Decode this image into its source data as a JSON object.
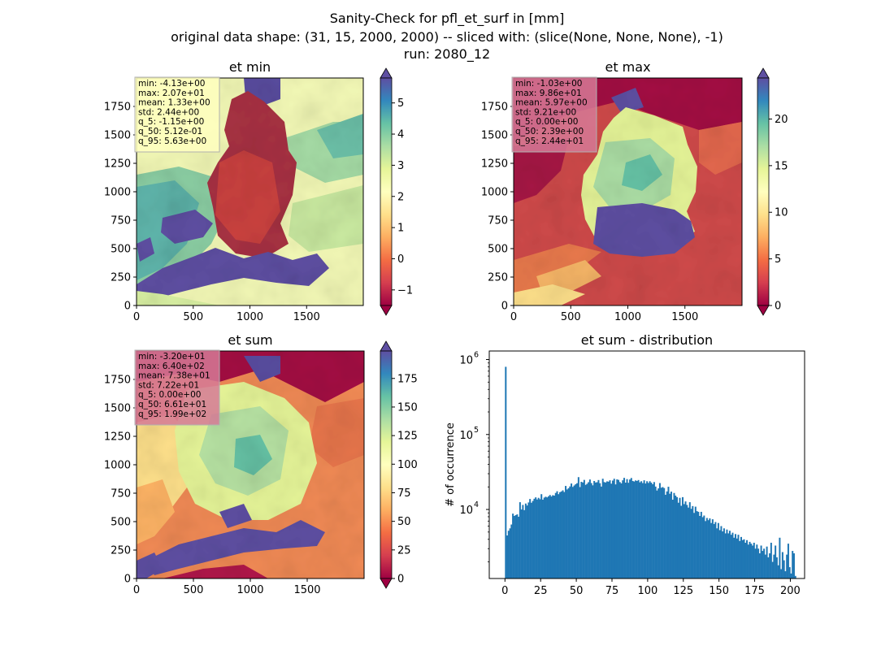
{
  "figure": {
    "suptitle_lines": [
      "Sanity-Check for pfl_et_surf in [mm]",
      "original data shape: (31, 15, 2000, 2000) -- sliced with: (slice(None, None, None), -1)",
      "run: 2080_12"
    ]
  },
  "chart_data": [
    {
      "type": "heatmap",
      "title": "et min",
      "xticks": [
        0,
        500,
        1000,
        1500
      ],
      "yticks": [
        0,
        250,
        500,
        750,
        1000,
        1250,
        1500,
        1750
      ],
      "xlim": [
        0,
        2000
      ],
      "ylim": [
        0,
        2000
      ],
      "colormap": "Spectral",
      "colorbar": {
        "vmin": -1.5,
        "vmax": 5.8,
        "ticks": [
          -1,
          0,
          1,
          2,
          3,
          4,
          5
        ],
        "extend": "both"
      },
      "stats": [
        "min: -4.13e+00",
        "max: 2.07e+01",
        "mean: 1.33e+00",
        "std: 2.44e+00",
        "q_5: -1.15e+00",
        "q_50: 5.12e-01",
        "q_95: 5.63e+00"
      ],
      "stats_box_color": "#ffffbf"
    },
    {
      "type": "heatmap",
      "title": "et max",
      "xticks": [
        0,
        500,
        1000,
        1500
      ],
      "yticks": [
        0,
        250,
        500,
        750,
        1000,
        1250,
        1500,
        1750
      ],
      "xlim": [
        0,
        2000
      ],
      "ylim": [
        0,
        2000
      ],
      "colormap": "Spectral",
      "colorbar": {
        "vmin": 0,
        "vmax": 24.4,
        "ticks": [
          0,
          5,
          10,
          15,
          20
        ],
        "extend": "both"
      },
      "stats": [
        "min: -1.03e+00",
        "max: 9.86e+01",
        "mean: 5.97e+00",
        "std: 9.21e+00",
        "q_5: 0.00e+00",
        "q_50: 2.39e+00",
        "q_95: 2.44e+01"
      ],
      "stats_box_color": "#d67a96"
    },
    {
      "type": "heatmap",
      "title": "et sum",
      "xticks": [
        0,
        500,
        1000,
        1500
      ],
      "yticks": [
        0,
        250,
        500,
        750,
        1000,
        1250,
        1500,
        1750
      ],
      "xlim": [
        0,
        2000
      ],
      "ylim": [
        0,
        2000
      ],
      "colormap": "Spectral",
      "colorbar": {
        "vmin": 0,
        "vmax": 199,
        "ticks": [
          0,
          25,
          50,
          75,
          100,
          125,
          150,
          175
        ],
        "extend": "both"
      },
      "stats": [
        "min: -3.20e+01",
        "max: 6.40e+02",
        "mean: 7.38e+01",
        "std: 7.22e+01",
        "q_5: 0.00e+00",
        "q_50: 6.61e+01",
        "q_95: 1.99e+02"
      ],
      "stats_box_color": "#d67a96"
    },
    {
      "type": "bar",
      "title": "et sum - distribution",
      "ylabel": "# of occurrence",
      "yscale": "log",
      "ylim": [
        1200,
        1300000
      ],
      "xlim": [
        -11,
        210
      ],
      "xticks": [
        0,
        25,
        50,
        75,
        100,
        125,
        150,
        175,
        200
      ],
      "ytick_labels": [
        {
          "value": 10000,
          "base": "10",
          "exp": "4"
        },
        {
          "value": 100000,
          "base": "10",
          "exp": "5"
        },
        {
          "value": 1000000,
          "base": "10",
          "exp": "6"
        }
      ],
      "bin_start": 0,
      "bin_width": 1,
      "color": "#1f77b4",
      "values": [
        800000,
        4500,
        5200,
        5600,
        6300,
        8800,
        8200,
        8400,
        8600,
        8000,
        12500,
        10000,
        11500,
        9800,
        12000,
        11300,
        12400,
        13800,
        12300,
        13000,
        13900,
        14500,
        13600,
        14300,
        13700,
        16000,
        13500,
        14400,
        14800,
        14500,
        15000,
        15600,
        14900,
        15500,
        15300,
        16600,
        17500,
        16000,
        17000,
        17400,
        18000,
        17100,
        20600,
        18500,
        19200,
        20300,
        22200,
        20000,
        20900,
        21700,
        22400,
        27000,
        19900,
        23400,
        22900,
        24800,
        21300,
        22000,
        23100,
        25100,
        22500,
        21000,
        24000,
        22900,
        23100,
        24700,
        22400,
        20200,
        25700,
        23200,
        22900,
        23700,
        23500,
        24500,
        22100,
        24300,
        25700,
        21600,
        25200,
        24800,
        23200,
        22300,
        24500,
        26400,
        22800,
        25400,
        22700,
        25100,
        26300,
        24000,
        23600,
        24400,
        24000,
        24700,
        23000,
        23800,
        22500,
        24500,
        22200,
        23800,
        22600,
        23800,
        22800,
        21700,
        23200,
        20200,
        17900,
        19100,
        22500,
        19500,
        19900,
        19300,
        15700,
        17400,
        20100,
        16200,
        17300,
        13500,
        16600,
        15300,
        14600,
        12300,
        14300,
        11200,
        14600,
        11800,
        12800,
        11500,
        10600,
        12500,
        10200,
        11100,
        9000,
        10900,
        9500,
        9300,
        8200,
        9300,
        7900,
        8300,
        7000,
        7700,
        7200,
        7600,
        6600,
        7400,
        6400,
        6800,
        5600,
        6600,
        5300,
        6000,
        5100,
        5600,
        4800,
        5400,
        4800,
        5200,
        4600,
        4900,
        4200,
        4700,
        4100,
        4600,
        3800,
        4300,
        3900,
        4000,
        3600,
        3900,
        3400,
        3700,
        3500,
        3300,
        3600,
        3000,
        3400,
        3000,
        2600,
        3300,
        2800,
        3000,
        2500,
        3200,
        2300,
        2600,
        3600,
        2000,
        2500,
        3300,
        2300,
        1800,
        4200,
        1600,
        2700,
        2100,
        1500,
        2500,
        3500,
        1700,
        1400,
        2800,
        2600,
        1300
      ]
    }
  ]
}
